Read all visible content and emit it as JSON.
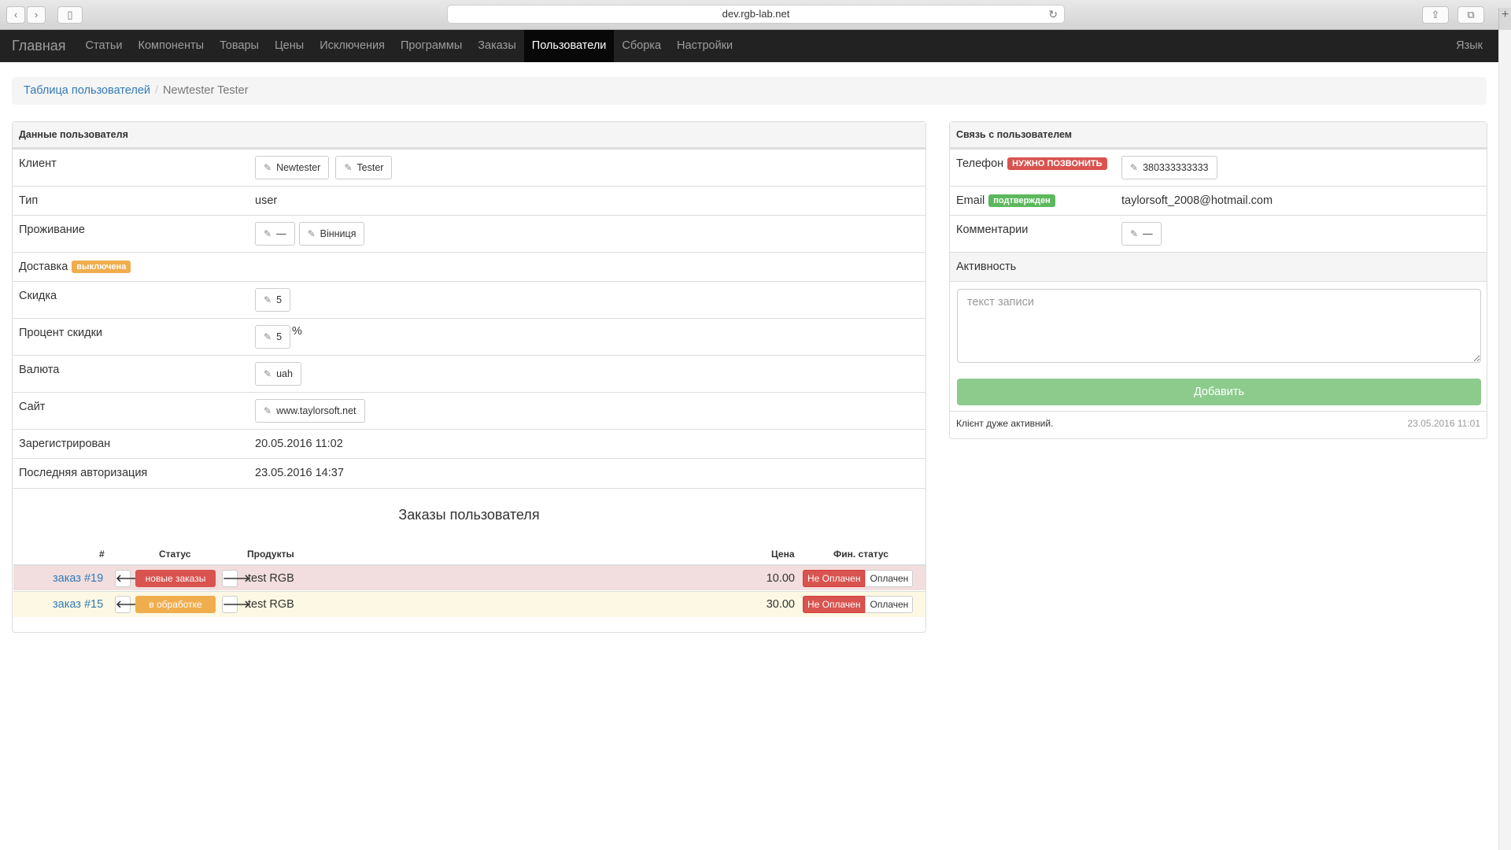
{
  "browser": {
    "url": "dev.rgb-lab.net",
    "back_icon": "chevron-left",
    "forward_icon": "chevron-right",
    "sidebar_icon": "sidebar",
    "reload_icon": "reload",
    "share_icon": "share",
    "tabs_icon": "tabs",
    "new_tab": "+"
  },
  "nav": {
    "brand": "Главная",
    "items": [
      "Статьи",
      "Компоненты",
      "Товары",
      "Цены",
      "Исключения",
      "Программы",
      "Заказы",
      "Пользователи",
      "Сборка",
      "Настройки"
    ],
    "active": "Пользователи",
    "lang": "Язык"
  },
  "breadcrumb": {
    "parent": "Таблица пользователей",
    "current": "Newtester Tester"
  },
  "user": {
    "title": "Данные пользователя",
    "client_label": "Клиент",
    "first_name": "Newtester",
    "last_name": "Tester",
    "type_label": "Тип",
    "type": "user",
    "residence_label": "Проживание",
    "region": "—",
    "city": "Вінниця",
    "delivery_label": "Доставка",
    "delivery_badge": "выключена",
    "discount_label": "Скидка",
    "discount": "5",
    "discount_pct_label": "Процент скидки",
    "discount_pct": "5",
    "pct_sign": "%",
    "currency_label": "Валюта",
    "currency": "uah",
    "site_label": "Сайт",
    "site": "www.taylorsoft.net",
    "registered_label": "Зарегистрирован",
    "registered": "20.05.2016 11:02",
    "last_login_label": "Последняя авторизация",
    "last_login": "23.05.2016 14:37"
  },
  "orders": {
    "title": "Заказы пользователя",
    "headers": {
      "num": "#",
      "status": "Статус",
      "products": "Продукты",
      "price": "Цена",
      "fin": "Фин. статус"
    },
    "rows": [
      {
        "link": "заказ #19",
        "status": "новые заказы",
        "product": "test RGB",
        "price": "10.00",
        "fin_no": "Не Оплачен",
        "fin_yes": "Оплачен"
      },
      {
        "link": "заказ #15",
        "status": "в обработке",
        "product": "test RGB",
        "price": "30.00",
        "fin_no": "Не Оплачен",
        "fin_yes": "Оплачен"
      }
    ],
    "arrow_left": "🡐",
    "arrow_right": "🡒"
  },
  "contact": {
    "title": "Связь с пользователем",
    "phone_label": "Телефон",
    "phone_badge": "НУЖНО ПОЗВОНИТЬ",
    "phone": "380333333333",
    "email_label": "Email",
    "email_badge": "подтвержден",
    "email": "taylorsoft_2008@hotmail.com",
    "comments_label": "Комментарии",
    "comments": "—",
    "activity_label": "Активность",
    "activity_placeholder": "текст записи",
    "add_button": "Добавить",
    "note_text": "Клієнт дуже активний.",
    "note_time": "23.05.2016 11:01"
  },
  "colors": {
    "navbar": "#222222",
    "link": "#337ab7",
    "danger": "#d9534f",
    "warning": "#f0ad4e",
    "success": "#5cb85c",
    "row_danger": "#f2dede",
    "row_warning": "#fcf8e3"
  }
}
